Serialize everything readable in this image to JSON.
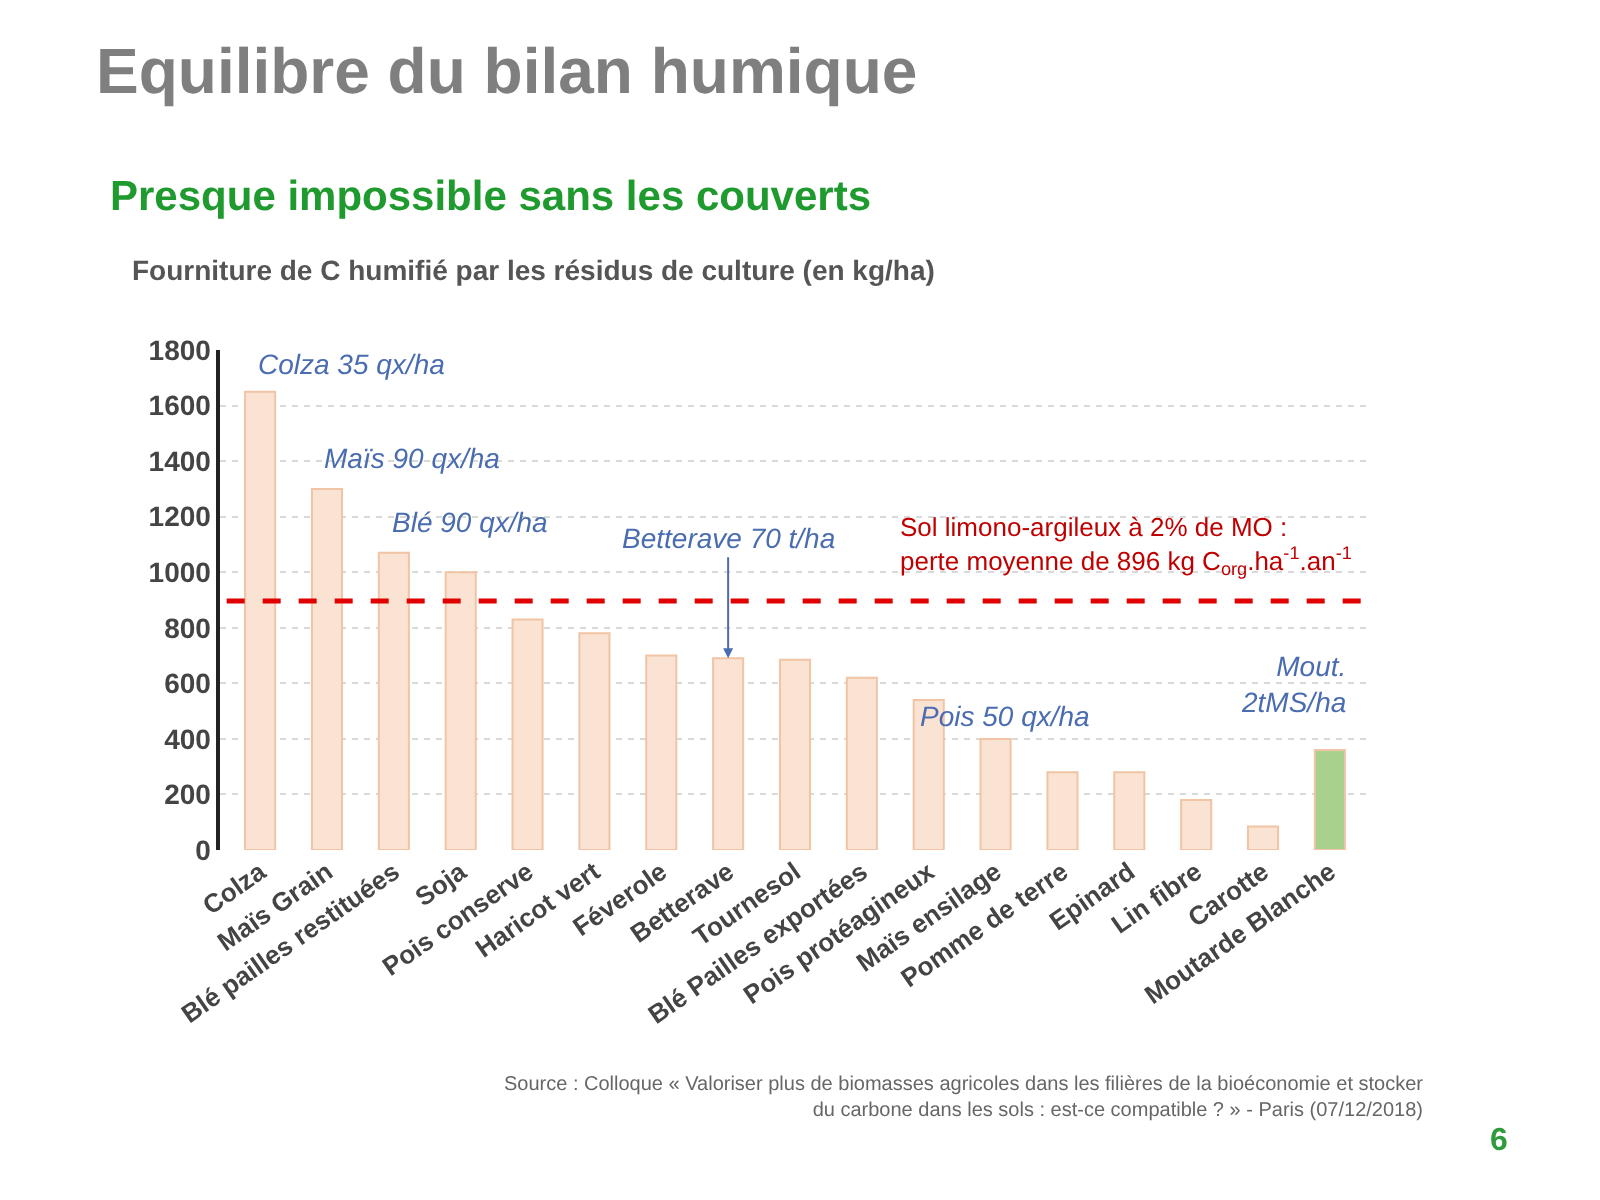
{
  "chart_data": {
    "type": "bar",
    "title": "Equilibre du bilan humique",
    "subtitle": "Presque impossible sans les couverts",
    "categories": [
      "Colza",
      "Maïs Grain",
      "Blé pailles restituées",
      "Soja",
      "Pois conserve",
      "Haricot vert",
      "Féverole",
      "Betterave",
      "Tournesol",
      "Blé Pailles exportées",
      "Pois protéagineux",
      "Maïs ensilage",
      "Pomme de terre",
      "Epinard",
      "Lin fibre",
      "Carotte",
      "Moutarde Blanche"
    ],
    "values": [
      1650,
      1300,
      1070,
      1000,
      830,
      780,
      700,
      690,
      685,
      620,
      540,
      400,
      280,
      280,
      180,
      85,
      360
    ],
    "colors": [
      "#fbe3d3",
      "#fbe3d3",
      "#fbe3d3",
      "#fbe3d3",
      "#fbe3d3",
      "#fbe3d3",
      "#fbe3d3",
      "#fbe3d3",
      "#fbe3d3",
      "#fbe3d3",
      "#fbe3d3",
      "#fbe3d3",
      "#fbe3d3",
      "#fbe3d3",
      "#fbe3d3",
      "#fbe3d3",
      "#a9d18e"
    ],
    "ylim": [
      0,
      1800
    ],
    "yticks": [
      0,
      200,
      400,
      600,
      800,
      1000,
      1200,
      1400,
      1600,
      1800
    ],
    "grid": "y",
    "ref_lines": [
      {
        "axis": "y",
        "value": 896,
        "label": "Sol limono-argileux à 2% de MO : perte moyenne de 896 kg C$_{org}$.ha$^{-1}$.an$^{-1}$",
        "color": "#e00000",
        "line_style": "dashed"
      }
    ],
    "annotations": [
      "Fourniture de C humifié par les résidus de culture (en kg/ha)",
      "Source : Colloque « Valoriser plus de biomasses agricoles dans les filières de la bioéconomie et stocker du carbone dans les sols : est-ce compatible ? » - Paris (07/12/2018)",
      "6",
      {
        "text": "Colza 35 qx/ha",
        "x": "Colza",
        "y": 1650
      },
      {
        "text": "Maïs 90 qx/ha",
        "x": "Maïs Grain",
        "y": 1300
      },
      {
        "text": "Blé 90 qx/ha",
        "x": "Blé pailles restituées",
        "y": 1070
      },
      {
        "text": "Betterave 70 t/ha",
        "x": "Betterave",
        "y": 690
      },
      {
        "text": "Pois 50 qx/ha",
        "x": "Pois protéagineux",
        "y": 540
      },
      {
        "text": "Mout. 2tMS/ha",
        "x": "Moutarde Blanche",
        "y": 360
      }
    ]
  }
}
